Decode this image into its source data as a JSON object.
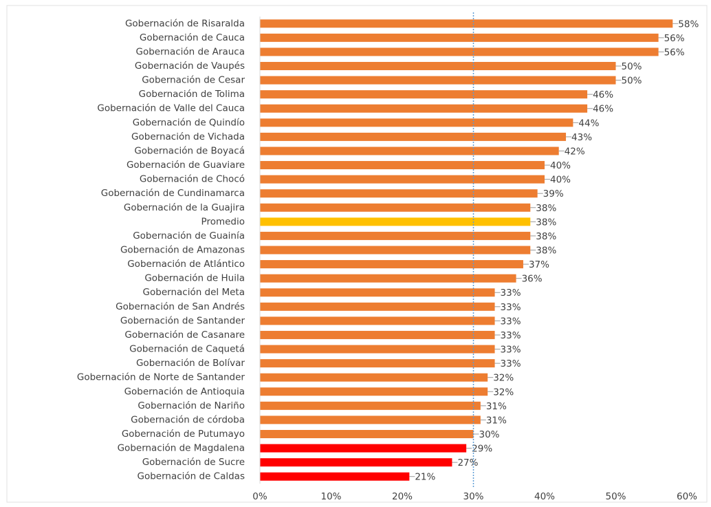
{
  "chart_data": {
    "type": "bar",
    "orientation": "horizontal",
    "categories": [
      "Gobernación de Risaralda",
      "Gobernación de Cauca",
      "Gobernación de Arauca",
      "Gobernación de Vaupés",
      "Gobernación de Cesar",
      "Gobernación de Tolima",
      "Gobernación de Valle del Cauca",
      "Gobernación de Quindío",
      "Gobernación de Vichada",
      "Gobernación de Boyacá",
      "Gobernación de Guaviare",
      "Gobernación de Chocó",
      "Gobernación de Cundinamarca",
      "Gobernación de la Guajira",
      "Promedio",
      "Gobernación de Guainía",
      "Gobernación de Amazonas",
      "Gobernación de Atlántico",
      "Gobernación de Huila",
      "Gobernación del Meta",
      "Gobernación de San Andrés",
      "Gobernación de Santander",
      "Gobernación de Casanare",
      "Gobernación de Caquetá",
      "Gobernación de Bolívar",
      "Gobernación de Norte de Santander",
      "Gobernación de Antioquia",
      "Gobernación de Nariño",
      "Gobernación de córdoba",
      "Gobernación de Putumayo",
      "Gobernación de Magdalena",
      "Gobernación de Sucre",
      "Gobernación de Caldas"
    ],
    "values": [
      58,
      56,
      56,
      50,
      50,
      46,
      46,
      44,
      43,
      42,
      40,
      40,
      39,
      38,
      38,
      38,
      38,
      37,
      36,
      33,
      33,
      33,
      33,
      33,
      33,
      32,
      32,
      31,
      31,
      30,
      29,
      27,
      21
    ],
    "value_labels": [
      "58%",
      "56%",
      "56%",
      "50%",
      "50%",
      "46%",
      "46%",
      "44%",
      "43%",
      "42%",
      "40%",
      "40%",
      "39%",
      "38%",
      "38%",
      "38%",
      "38%",
      "37%",
      "36%",
      "33%",
      "33%",
      "33%",
      "33%",
      "33%",
      "33%",
      "32%",
      "32%",
      "31%",
      "31%",
      "30%",
      "29%",
      "27%",
      "21%"
    ],
    "colors": [
      "#ed7d31",
      "#ed7d31",
      "#ed7d31",
      "#ed7d31",
      "#ed7d31",
      "#ed7d31",
      "#ed7d31",
      "#ed7d31",
      "#ed7d31",
      "#ed7d31",
      "#ed7d31",
      "#ed7d31",
      "#ed7d31",
      "#ed7d31",
      "#ffc000",
      "#ed7d31",
      "#ed7d31",
      "#ed7d31",
      "#ed7d31",
      "#ed7d31",
      "#ed7d31",
      "#ed7d31",
      "#ed7d31",
      "#ed7d31",
      "#ed7d31",
      "#ed7d31",
      "#ed7d31",
      "#ed7d31",
      "#ed7d31",
      "#ed7d31",
      "#ff0000",
      "#ff0000",
      "#ff0000"
    ],
    "xlim": [
      0,
      60
    ],
    "xticks": [
      {
        "value": 0,
        "label": "0%"
      },
      {
        "value": 10,
        "label": "10%"
      },
      {
        "value": 20,
        "label": "20%"
      },
      {
        "value": 30,
        "label": "30%"
      },
      {
        "value": 40,
        "label": "40%"
      },
      {
        "value": 50,
        "label": "50%"
      },
      {
        "value": 60,
        "label": "60%"
      }
    ],
    "reference_line": {
      "value": 30,
      "color": "#5b9bd5"
    },
    "grid": false
  }
}
